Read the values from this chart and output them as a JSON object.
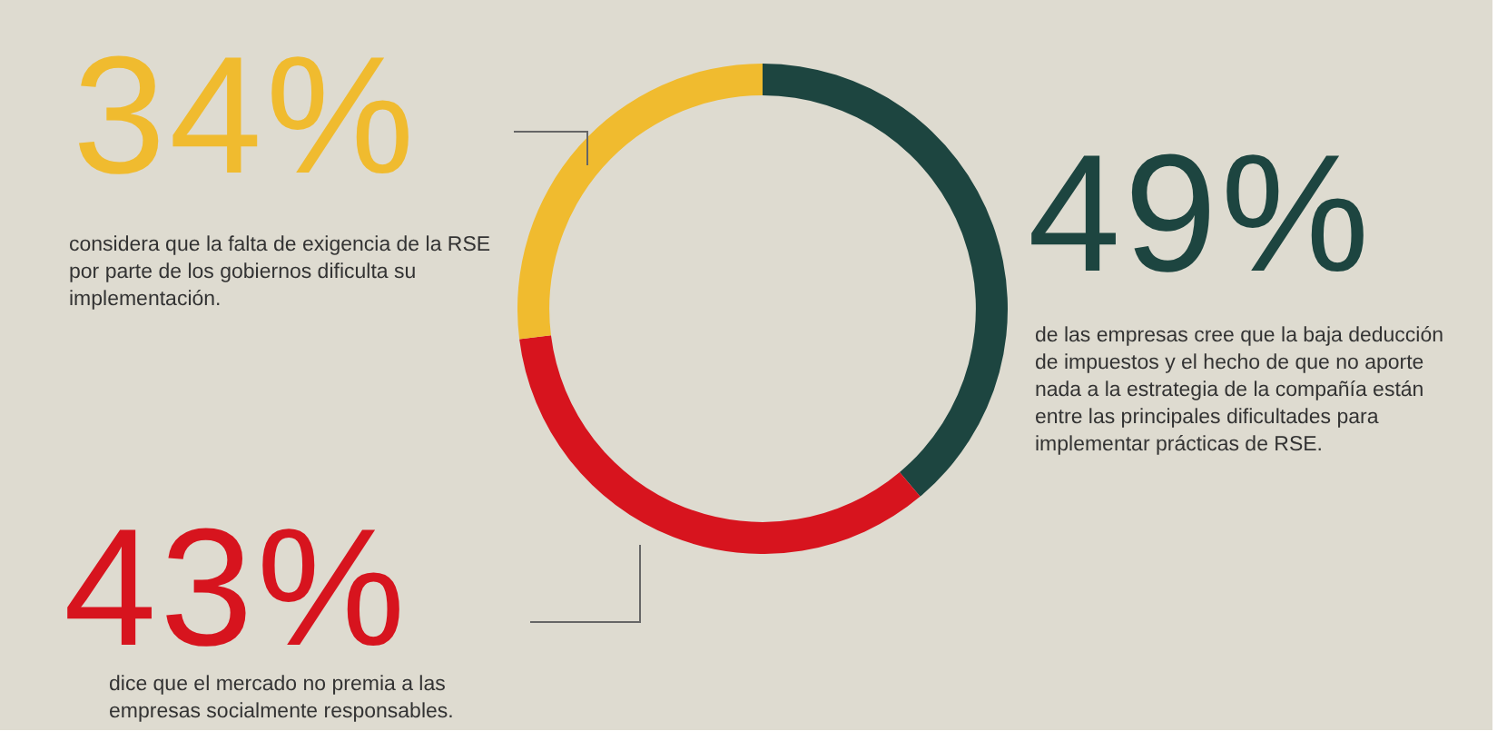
{
  "chart_data": {
    "type": "donut",
    "categories": [
      "de las empresas cree que la baja deducción de impuestos y el hecho de que no aporte nada a la estrategia de la compañía están entre las principales dificultades para implementar prácticas de RSE.",
      "dice que el mercado no premia a las empresas socialmente responsables.",
      "considera que la falta de exigencia de la RSE por parte de los gobiernos dificulta su implementación."
    ],
    "values": [
      49,
      43,
      34
    ],
    "colors": [
      "#1d4540",
      "#d7141e",
      "#f0bb2f"
    ],
    "value_labels": [
      "49%",
      "43%",
      "34%"
    ],
    "legend": false
  }
}
